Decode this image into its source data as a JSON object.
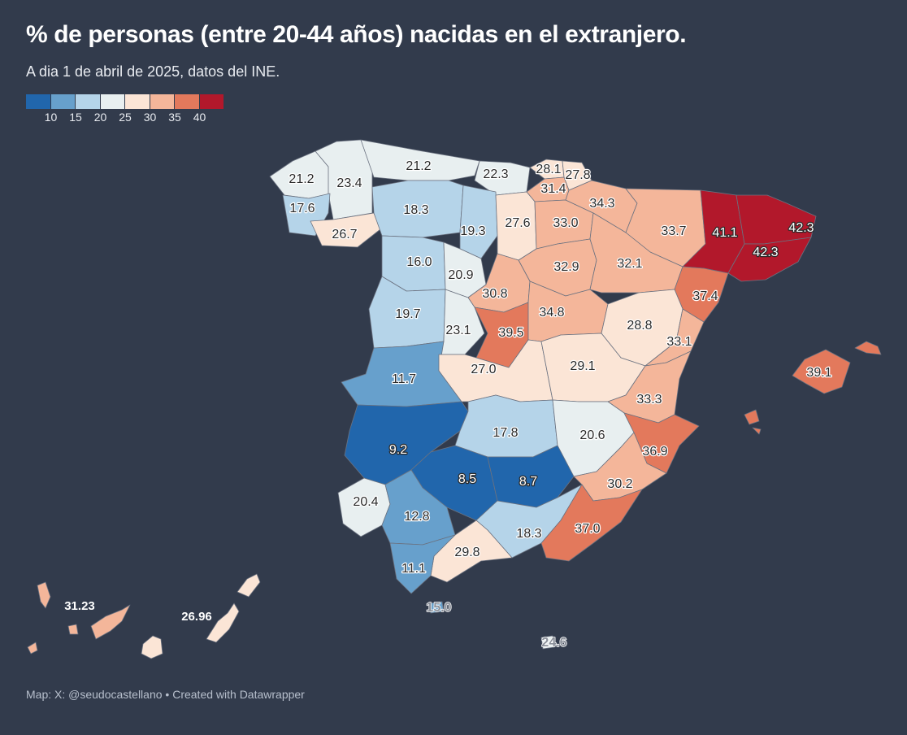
{
  "header": {
    "title": "% de personas (entre 20-44 años) nacidas en el extranjero.",
    "subtitle": "A dia 1 de abril de 2025, datos del INE."
  },
  "legend": {
    "colors": [
      "#2166ac",
      "#67a0cc",
      "#b5d4e9",
      "#e8eff0",
      "#fbe5d6",
      "#f4b69a",
      "#e3795c",
      "#b2182b"
    ],
    "ticks": [
      "10",
      "15",
      "20",
      "25",
      "30",
      "35",
      "40"
    ]
  },
  "footer": {
    "credit": "Map: X: @seudocastellano • Created with Datawrapper"
  },
  "chart_data": {
    "type": "choropleth",
    "title": "% de personas (entre 20-44 años) nacidas en el extranjero.",
    "regions": [
      {
        "value": "21.2",
        "color": "#e8eff0"
      },
      {
        "value": "23.4",
        "color": "#e8eff0"
      },
      {
        "value": "17.6",
        "color": "#b5d4e9"
      },
      {
        "value": "26.7",
        "color": "#fbe5d6"
      },
      {
        "value": "21.2",
        "color": "#e8eff0"
      },
      {
        "value": "22.3",
        "color": "#e8eff0"
      },
      {
        "value": "28.1",
        "color": "#fbe5d6"
      },
      {
        "value": "27.8",
        "color": "#fbe5d6"
      },
      {
        "value": "31.4",
        "color": "#f4b69a"
      },
      {
        "value": "18.3",
        "color": "#b5d4e9"
      },
      {
        "value": "19.3",
        "color": "#b5d4e9"
      },
      {
        "value": "27.6",
        "color": "#fbe5d6"
      },
      {
        "value": "33.0",
        "color": "#f4b69a"
      },
      {
        "value": "34.3",
        "color": "#f4b69a"
      },
      {
        "value": "33.7",
        "color": "#f4b69a"
      },
      {
        "value": "41.1",
        "color": "#b2182b"
      },
      {
        "value": "42.3",
        "color": "#b2182b"
      },
      {
        "value": "42.3",
        "color": "#b2182b"
      },
      {
        "value": "16.0",
        "color": "#b5d4e9"
      },
      {
        "value": "20.9",
        "color": "#e8eff0"
      },
      {
        "value": "32.9",
        "color": "#f4b69a"
      },
      {
        "value": "32.1",
        "color": "#f4b69a"
      },
      {
        "value": "30.8",
        "color": "#f4b69a"
      },
      {
        "value": "37.4",
        "color": "#e3795c"
      },
      {
        "value": "19.7",
        "color": "#b5d4e9"
      },
      {
        "value": "23.1",
        "color": "#e8eff0"
      },
      {
        "value": "39.5",
        "color": "#e3795c"
      },
      {
        "value": "34.8",
        "color": "#f4b69a"
      },
      {
        "value": "28.8",
        "color": "#fbe5d6"
      },
      {
        "value": "33.1",
        "color": "#f4b69a"
      },
      {
        "value": "11.7",
        "color": "#67a0cc"
      },
      {
        "value": "27.0",
        "color": "#fbe5d6"
      },
      {
        "value": "29.1",
        "color": "#fbe5d6"
      },
      {
        "value": "39.1",
        "color": "#e3795c"
      },
      {
        "value": "33.3",
        "color": "#f4b69a"
      },
      {
        "value": "9.2",
        "color": "#2166ac"
      },
      {
        "value": "17.8",
        "color": "#b5d4e9"
      },
      {
        "value": "20.6",
        "color": "#e8eff0"
      },
      {
        "value": "36.9",
        "color": "#e3795c"
      },
      {
        "value": "8.5",
        "color": "#2166ac"
      },
      {
        "value": "8.7",
        "color": "#2166ac"
      },
      {
        "value": "30.2",
        "color": "#f4b69a"
      },
      {
        "value": "20.4",
        "color": "#e8eff0"
      },
      {
        "value": "12.8",
        "color": "#67a0cc"
      },
      {
        "value": "18.3",
        "color": "#b5d4e9"
      },
      {
        "value": "37.0",
        "color": "#e3795c"
      },
      {
        "value": "29.8",
        "color": "#fbe5d6"
      },
      {
        "value": "11.1",
        "color": "#67a0cc"
      },
      {
        "value": "15.0",
        "color": "#67a0cc"
      },
      {
        "value": "24.6",
        "color": "#e8eff0"
      },
      {
        "value": "31.23",
        "color": "#f4b69a"
      },
      {
        "value": "26.96",
        "color": "#fbe5d6"
      }
    ]
  }
}
